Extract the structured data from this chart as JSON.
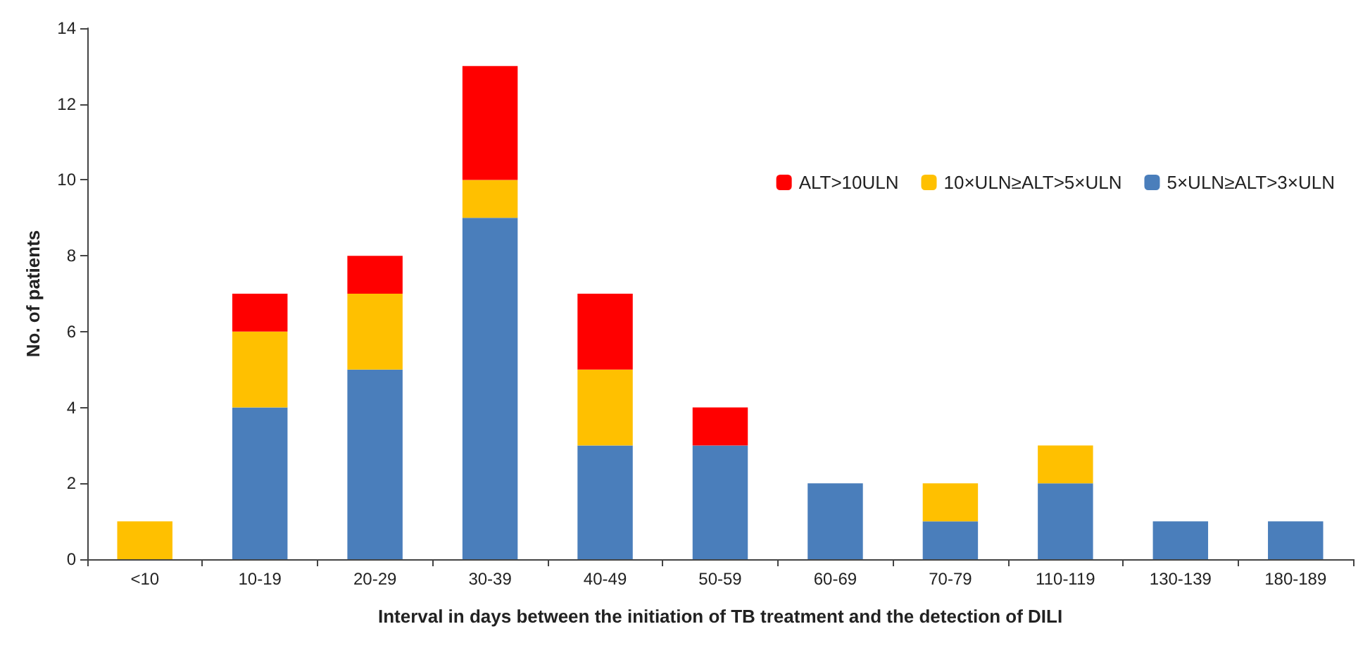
{
  "chart_data": {
    "type": "bar",
    "stacked": true,
    "xlabel": "Interval in days between the initiation of TB treatment and the detection of DILI",
    "ylabel": "No. of patients",
    "categories": [
      "<10",
      "10-19",
      "20-29",
      "30-39",
      "40-49",
      "50-59",
      "60-69",
      "70-79",
      "110-119",
      "130-139",
      "180-189"
    ],
    "series": [
      {
        "name": "5×ULN≥ALT>3×ULN",
        "color": "#4a7ebb",
        "values": [
          0,
          4,
          5,
          9,
          3,
          3,
          2,
          1,
          2,
          1,
          1
        ]
      },
      {
        "name": "10×ULN≥ALT>5×ULN",
        "color": "#ffc000",
        "values": [
          1,
          2,
          2,
          1,
          2,
          0,
          0,
          1,
          1,
          0,
          0
        ]
      },
      {
        "name": "ALT>10ULN",
        "color": "#ff0000",
        "values": [
          0,
          1,
          1,
          3,
          2,
          1,
          0,
          0,
          0,
          0,
          0
        ]
      }
    ],
    "ylim": [
      0,
      14
    ],
    "yticks": [
      0,
      2,
      4,
      6,
      8,
      10,
      12,
      14
    ],
    "grid": false,
    "legend": "top right"
  }
}
